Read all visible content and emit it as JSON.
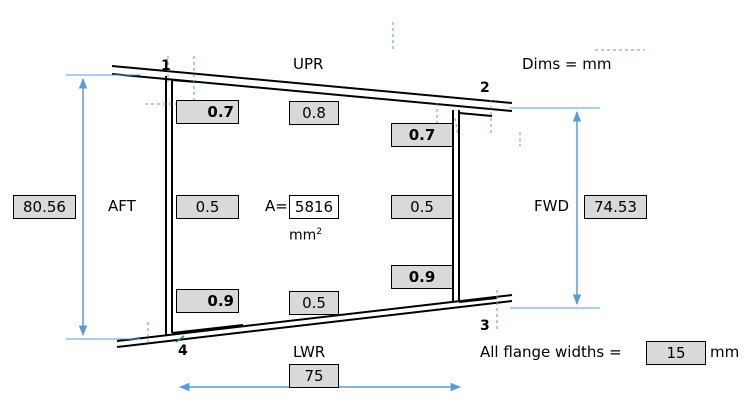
{
  "corners": {
    "c1": "1",
    "c2": "2",
    "c3": "3",
    "c4": "4"
  },
  "labels": {
    "upr": "UPR",
    "lwr": "LWR",
    "aft": "AFT",
    "fwd": "FWD",
    "dims": "Dims = mm",
    "area_prefix": "A=",
    "area_unit_base": "mm",
    "area_unit_exp": "2",
    "flange_text": "All flange widths =",
    "flange_unit": "mm"
  },
  "values": {
    "aft_height": "80.56",
    "fwd_height": "74.53",
    "length": "75",
    "area": "5816",
    "flange_width": "15"
  },
  "thickness": {
    "upper_aft_flange": "0.7",
    "upper_skin": "0.8",
    "upper_fwd_flange": "0.7",
    "aft_web": "0.5",
    "fwd_web": "0.5",
    "lower_aft_flange": "0.9",
    "lower_skin": "0.5",
    "lower_fwd_flange": "0.9"
  },
  "colors": {
    "dimension": "#5b9bd5",
    "structure": "#000000",
    "box_fill": "#d9d9d9"
  }
}
